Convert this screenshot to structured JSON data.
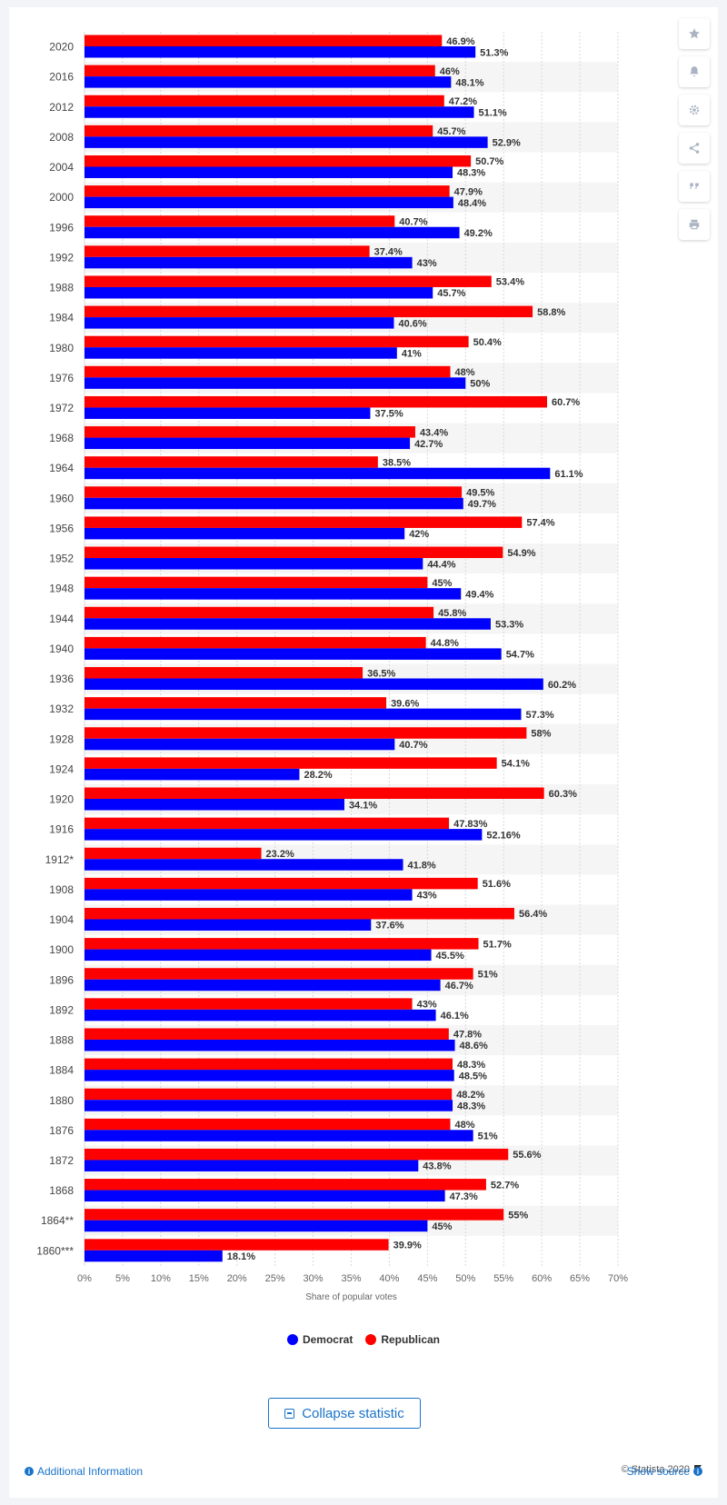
{
  "chart_data": {
    "type": "bar",
    "orientation": "horizontal",
    "categories": [
      "2020",
      "2016",
      "2012",
      "2008",
      "2004",
      "2000",
      "1996",
      "1992",
      "1988",
      "1984",
      "1980",
      "1976",
      "1972",
      "1968",
      "1964",
      "1960",
      "1956",
      "1952",
      "1948",
      "1944",
      "1940",
      "1936",
      "1932",
      "1928",
      "1924",
      "1920",
      "1916",
      "1912*",
      "1908",
      "1904",
      "1900",
      "1896",
      "1892",
      "1888",
      "1884",
      "1880",
      "1876",
      "1872",
      "1868",
      "1864**",
      "1860***"
    ],
    "series": [
      {
        "name": "Republican",
        "color": "#ff0000",
        "values": [
          46.9,
          46,
          47.2,
          45.7,
          50.7,
          47.9,
          40.7,
          37.4,
          53.4,
          58.8,
          50.4,
          48,
          60.7,
          43.4,
          38.5,
          49.5,
          57.4,
          54.9,
          45,
          45.8,
          44.8,
          36.5,
          39.6,
          58,
          54.1,
          60.3,
          47.83,
          23.2,
          51.6,
          56.4,
          51.7,
          51,
          43,
          47.8,
          48.3,
          48.2,
          48,
          55.6,
          52.7,
          55,
          39.9
        ],
        "labels": [
          "46.9%",
          "46%",
          "47.2%",
          "45.7%",
          "50.7%",
          "47.9%",
          "40.7%",
          "37.4%",
          "53.4%",
          "58.8%",
          "50.4%",
          "48%",
          "60.7%",
          "43.4%",
          "38.5%",
          "49.5%",
          "57.4%",
          "54.9%",
          "45%",
          "45.8%",
          "44.8%",
          "36.5%",
          "39.6%",
          "58%",
          "54.1%",
          "60.3%",
          "47.83%",
          "23.2%",
          "51.6%",
          "56.4%",
          "51.7%",
          "51%",
          "43%",
          "47.8%",
          "48.3%",
          "48.2%",
          "48%",
          "55.6%",
          "52.7%",
          "55%",
          "39.9%"
        ]
      },
      {
        "name": "Democrat",
        "color": "#0000ff",
        "values": [
          51.3,
          48.1,
          51.1,
          52.9,
          48.3,
          48.4,
          49.2,
          43,
          45.7,
          40.6,
          41,
          50,
          37.5,
          42.7,
          61.1,
          49.7,
          42,
          44.4,
          49.4,
          53.3,
          54.7,
          60.2,
          57.3,
          40.7,
          28.2,
          34.1,
          52.16,
          41.8,
          43,
          37.6,
          45.5,
          46.7,
          46.1,
          48.6,
          48.5,
          48.3,
          51,
          43.8,
          47.3,
          45,
          18.1
        ],
        "labels": [
          "51.3%",
          "48.1%",
          "51.1%",
          "52.9%",
          "48.3%",
          "48.4%",
          "49.2%",
          "43%",
          "45.7%",
          "40.6%",
          "41%",
          "50%",
          "37.5%",
          "42.7%",
          "61.1%",
          "49.7%",
          "42%",
          "44.4%",
          "49.4%",
          "53.3%",
          "54.7%",
          "60.2%",
          "57.3%",
          "40.7%",
          "28.2%",
          "34.1%",
          "52.16%",
          "41.8%",
          "43%",
          "37.6%",
          "45.5%",
          "46.7%",
          "46.1%",
          "48.6%",
          "48.5%",
          "48.3%",
          "51%",
          "43.8%",
          "47.3%",
          "45%",
          "18.1%"
        ]
      }
    ],
    "xlabel": "Share of popular votes",
    "ylabel": "",
    "xlim": [
      0,
      70
    ],
    "xticks": [
      "0%",
      "5%",
      "10%",
      "15%",
      "20%",
      "25%",
      "30%",
      "35%",
      "40%",
      "45%",
      "50%",
      "55%",
      "60%",
      "65%",
      "70%"
    ],
    "grid": true,
    "legend_position": "bottom-center"
  },
  "legend": {
    "democrat": "Democrat",
    "republican": "Republican"
  },
  "toolbar_icons": [
    "star-icon",
    "bell-icon",
    "gear-icon",
    "share-icon",
    "quote-icon",
    "print-icon"
  ],
  "collapse_label": "Collapse statistic",
  "copyright": "© Statista 2020",
  "additional_info": "Additional Information",
  "show_source": "Show source",
  "colors": {
    "accent": "#1a73c8",
    "band": "#f5f5f5",
    "grid": "#d8d8d8"
  }
}
